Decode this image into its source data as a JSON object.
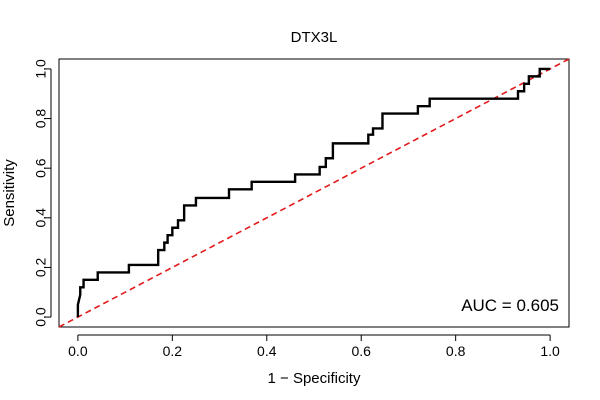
{
  "chart_data": {
    "type": "line",
    "title": "DTX3L",
    "xlabel": "1 − Specificity",
    "ylabel": "Sensitivity",
    "xlim": [
      -0.04,
      1.04
    ],
    "ylim": [
      -0.04,
      1.04
    ],
    "x_ticks": [
      0.0,
      0.2,
      0.4,
      0.6,
      0.8,
      1.0
    ],
    "x_tick_labels": [
      "0.0",
      "0.2",
      "0.4",
      "0.6",
      "0.8",
      "1.0"
    ],
    "y_ticks": [
      0.0,
      0.2,
      0.4,
      0.6,
      0.8,
      1.0
    ],
    "y_tick_labels": [
      "0.0",
      "0.2",
      "0.4",
      "0.6",
      "0.8",
      "1.0"
    ],
    "series": [
      {
        "name": "ROC curve",
        "color": "#000000",
        "style": "solid",
        "x": [
          0.0,
          0.0,
          0.005,
          0.005,
          0.012,
          0.012,
          0.02,
          0.02,
          0.042,
          0.042,
          0.108,
          0.108,
          0.17,
          0.17,
          0.183,
          0.183,
          0.19,
          0.19,
          0.2,
          0.2,
          0.212,
          0.212,
          0.225,
          0.225,
          0.25,
          0.25,
          0.32,
          0.32,
          0.368,
          0.368,
          0.46,
          0.46,
          0.512,
          0.512,
          0.525,
          0.525,
          0.54,
          0.54,
          0.615,
          0.615,
          0.625,
          0.625,
          0.645,
          0.645,
          0.72,
          0.72,
          0.745,
          0.745,
          0.88,
          0.88,
          0.932,
          0.932,
          0.945,
          0.945,
          0.955,
          0.955,
          0.965,
          0.965,
          0.978,
          0.978,
          1.0
        ],
        "y": [
          0.0,
          0.05,
          0.09,
          0.12,
          0.12,
          0.15,
          0.15,
          0.15,
          0.15,
          0.18,
          0.18,
          0.21,
          0.21,
          0.27,
          0.27,
          0.3,
          0.3,
          0.33,
          0.33,
          0.36,
          0.36,
          0.39,
          0.39,
          0.45,
          0.45,
          0.48,
          0.48,
          0.515,
          0.515,
          0.545,
          0.545,
          0.575,
          0.575,
          0.605,
          0.605,
          0.64,
          0.64,
          0.7,
          0.7,
          0.735,
          0.735,
          0.76,
          0.76,
          0.82,
          0.82,
          0.85,
          0.85,
          0.88,
          0.88,
          0.88,
          0.88,
          0.91,
          0.91,
          0.94,
          0.94,
          0.97,
          0.97,
          0.97,
          0.97,
          1.0,
          1.0
        ]
      },
      {
        "name": "Reference line",
        "color": "#e31a1c",
        "style": "dashed",
        "x": [
          -0.04,
          1.04
        ],
        "y": [
          -0.04,
          1.04
        ]
      }
    ],
    "annotations": [
      {
        "text": "AUC = 0.605",
        "position": "bottom-right"
      }
    ]
  }
}
